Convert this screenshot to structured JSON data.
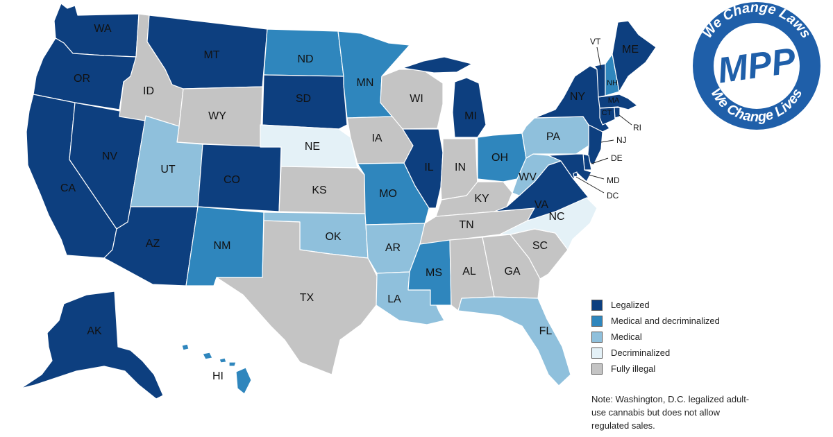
{
  "colors": {
    "legalized": "#0d3f7f",
    "medical_decrim": "#2f86bd",
    "medical": "#8fc0dc",
    "decriminalized": "#e4f1f7",
    "illegal": "#c4c4c4"
  },
  "legend": [
    {
      "key": "legalized",
      "label": "Legalized"
    },
    {
      "key": "medical_decrim",
      "label": "Medical and decriminalized"
    },
    {
      "key": "medical",
      "label": "Medical"
    },
    {
      "key": "decriminalized",
      "label": "Decriminalized"
    },
    {
      "key": "illegal",
      "label": "Fully illegal"
    }
  ],
  "states": {
    "WA": "legalized",
    "OR": "legalized",
    "CA": "legalized",
    "NV": "legalized",
    "ID": "illegal",
    "MT": "legalized",
    "WY": "illegal",
    "UT": "medical",
    "AZ": "legalized",
    "CO": "legalized",
    "NM": "medical_decrim",
    "ND": "medical_decrim",
    "SD": "legalized",
    "NE": "decriminalized",
    "KS": "illegal",
    "OK": "medical",
    "TX": "illegal",
    "MN": "medical_decrim",
    "IA": "illegal",
    "MO": "medical_decrim",
    "AR": "medical",
    "LA": "medical",
    "WI": "illegal",
    "IL": "legalized",
    "MI": "legalized",
    "IN": "illegal",
    "OH": "medical_decrim",
    "KY": "illegal",
    "TN": "illegal",
    "MS": "medical_decrim",
    "AL": "illegal",
    "GA": "illegal",
    "FL": "medical",
    "SC": "illegal",
    "NC": "decriminalized",
    "VA": "legalized",
    "WV": "medical",
    "PA": "medical",
    "NY": "legalized",
    "VT": "legalized",
    "NH": "medical_decrim",
    "ME": "legalized",
    "MA": "legalized",
    "CT": "legalized",
    "RI": "legalized",
    "NJ": "legalized",
    "DE": "legalized",
    "MD": "legalized",
    "DC": "legalized",
    "AK": "legalized",
    "HI": "medical_decrim"
  },
  "labels": [
    "WA",
    "OR",
    "CA",
    "NV",
    "ID",
    "MT",
    "WY",
    "UT",
    "AZ",
    "CO",
    "NM",
    "ND",
    "SD",
    "NE",
    "KS",
    "OK",
    "TX",
    "MN",
    "IA",
    "MO",
    "AR",
    "LA",
    "WI",
    "IL",
    "MI",
    "IN",
    "OH",
    "KY",
    "TN",
    "MS",
    "AL",
    "GA",
    "FL",
    "SC",
    "NC",
    "VA",
    "WV",
    "PA",
    "NY",
    "ME",
    "AK",
    "HI",
    "NH",
    "MA",
    "CT"
  ],
  "callouts": [
    "VT",
    "RI",
    "NJ",
    "DE",
    "MD",
    "DC"
  ],
  "note": "Note: Washington, D.C. legalized adult-use cannabis but does not allow regulated sales.",
  "logo": {
    "top_text": "We Change Laws",
    "bottom_text": "We Change Lives",
    "brand": "MPP",
    "color": "#1f5fa9"
  }
}
